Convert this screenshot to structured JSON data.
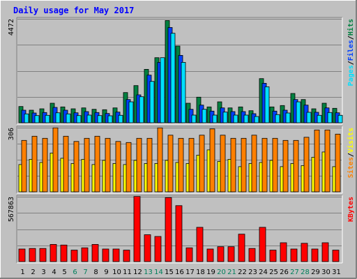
{
  "chart_data": {
    "type": "bar",
    "title": "Daily usage for May 2017",
    "categories": [
      "1",
      "2",
      "3",
      "4",
      "5",
      "6",
      "7",
      "8",
      "9",
      "10",
      "11",
      "12",
      "13",
      "14",
      "15",
      "16",
      "17",
      "18",
      "19",
      "20",
      "21",
      "22",
      "23",
      "24",
      "25",
      "26",
      "27",
      "28",
      "29",
      "30",
      "31"
    ],
    "weekend_days": [
      "6",
      "7",
      "13",
      "14",
      "20",
      "21",
      "27",
      "28"
    ],
    "panels": [
      {
        "name": "hits-files-pages",
        "ymax_label": "4472",
        "ymax": 4472,
        "legend": [
          "Pages",
          "Files",
          "Hits"
        ],
        "series": [
          {
            "name": "Hits",
            "color": "#008040",
            "values": [
              700,
              540,
              600,
              840,
              680,
              600,
              640,
              580,
              560,
              640,
              1300,
              1600,
              2300,
              2800,
              4400,
              3300,
              840,
              1100,
              680,
              900,
              640,
              680,
              520,
              1900,
              680,
              740,
              1260,
              1000,
              600,
              840,
              620
            ]
          },
          {
            "name": "Files",
            "color": "#0040ff",
            "values": [
              540,
              420,
              440,
              660,
              540,
              430,
              480,
              440,
              400,
              460,
              1000,
              1200,
              2050,
              2600,
              4100,
              2900,
              580,
              760,
              500,
              640,
              480,
              480,
              390,
              1700,
              500,
              540,
              1000,
              760,
              450,
              640,
              430
            ]
          },
          {
            "name": "Pages",
            "color": "#00e0ff",
            "values": [
              380,
              310,
              320,
              430,
              380,
              310,
              330,
              310,
              300,
              320,
              900,
              1120,
              1780,
              2800,
              3850,
              2600,
              330,
              580,
              330,
              460,
              330,
              330,
              270,
              1550,
              350,
              420,
              900,
              450,
              320,
              440,
              320
            ]
          }
        ]
      },
      {
        "name": "sites-visits",
        "ymax_label": "306",
        "ymax": 306,
        "legend": [
          "Sites",
          "Visits"
        ],
        "series": [
          {
            "name": "Visits",
            "color": "#ffff00",
            "values": [
              130,
              155,
              140,
              185,
              160,
              135,
              155,
              130,
              150,
              135,
              130,
              150,
              135,
              135,
              150,
              140,
              135,
              175,
              200,
              145,
              155,
              120,
              135,
              140,
              150,
              120,
              135,
              125,
              165,
              190,
              120
            ]
          },
          {
            "name": "Sites",
            "color": "#ff8000",
            "values": [
              245,
              265,
              255,
              305,
              265,
              240,
              255,
              265,
              255,
              240,
              235,
              255,
              255,
              305,
              270,
              255,
              255,
              270,
              300,
              270,
              255,
              255,
              270,
              255,
              255,
              245,
              245,
              260,
              295,
              295,
              275
            ]
          }
        ]
      },
      {
        "name": "kbytes",
        "ymax_label": "567863",
        "ymax": 567863,
        "legend": [
          "KBytes"
        ],
        "series": [
          {
            "name": "KBytes",
            "color": "#ff0000",
            "values": [
              110000,
              115000,
              115000,
              150000,
              145000,
              100000,
              120000,
              150000,
              110000,
              110000,
              100000,
              570000,
              235000,
              220000,
              560000,
              490000,
              120000,
              300000,
              110000,
              130000,
              130000,
              240000,
              115000,
              300000,
              100000,
              165000,
              110000,
              160000,
              110000,
              165000,
              100000
            ]
          }
        ]
      }
    ]
  }
}
